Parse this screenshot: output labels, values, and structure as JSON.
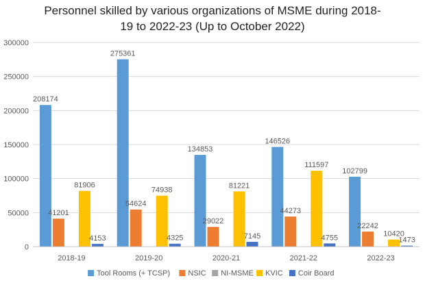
{
  "chart_data": {
    "type": "bar",
    "title_line1": "Personnel skilled by various organizations of MSME during 2018-",
    "title_line2": "19 to 2022-23 (Up to October 2022)",
    "categories": [
      "2018-19",
      "2019-20",
      "2020-21",
      "2021-22",
      "2022-23"
    ],
    "series": [
      {
        "name": "Tool Rooms (+ TCSP)",
        "color": "#5b9bd5",
        "values": [
          208174,
          275361,
          134853,
          146526,
          102799
        ]
      },
      {
        "name": "NSIC",
        "color": "#ed7d31",
        "values": [
          41201,
          54624,
          29022,
          44273,
          22242
        ]
      },
      {
        "name": "NI-MSME",
        "color": "#a5a5a5",
        "values": [
          null,
          null,
          null,
          null,
          null
        ]
      },
      {
        "name": "KVIC",
        "color": "#ffc000",
        "values": [
          81906,
          74938,
          81221,
          111597,
          10420
        ]
      },
      {
        "name": "Coir Board",
        "color": "#4472c4",
        "values": [
          4153,
          4325,
          7145,
          4755,
          1473
        ]
      }
    ],
    "ylim": [
      0,
      300000
    ],
    "yticks": [
      0,
      50000,
      100000,
      150000,
      200000,
      250000,
      300000
    ],
    "grid": true,
    "legend_position": "bottom"
  }
}
